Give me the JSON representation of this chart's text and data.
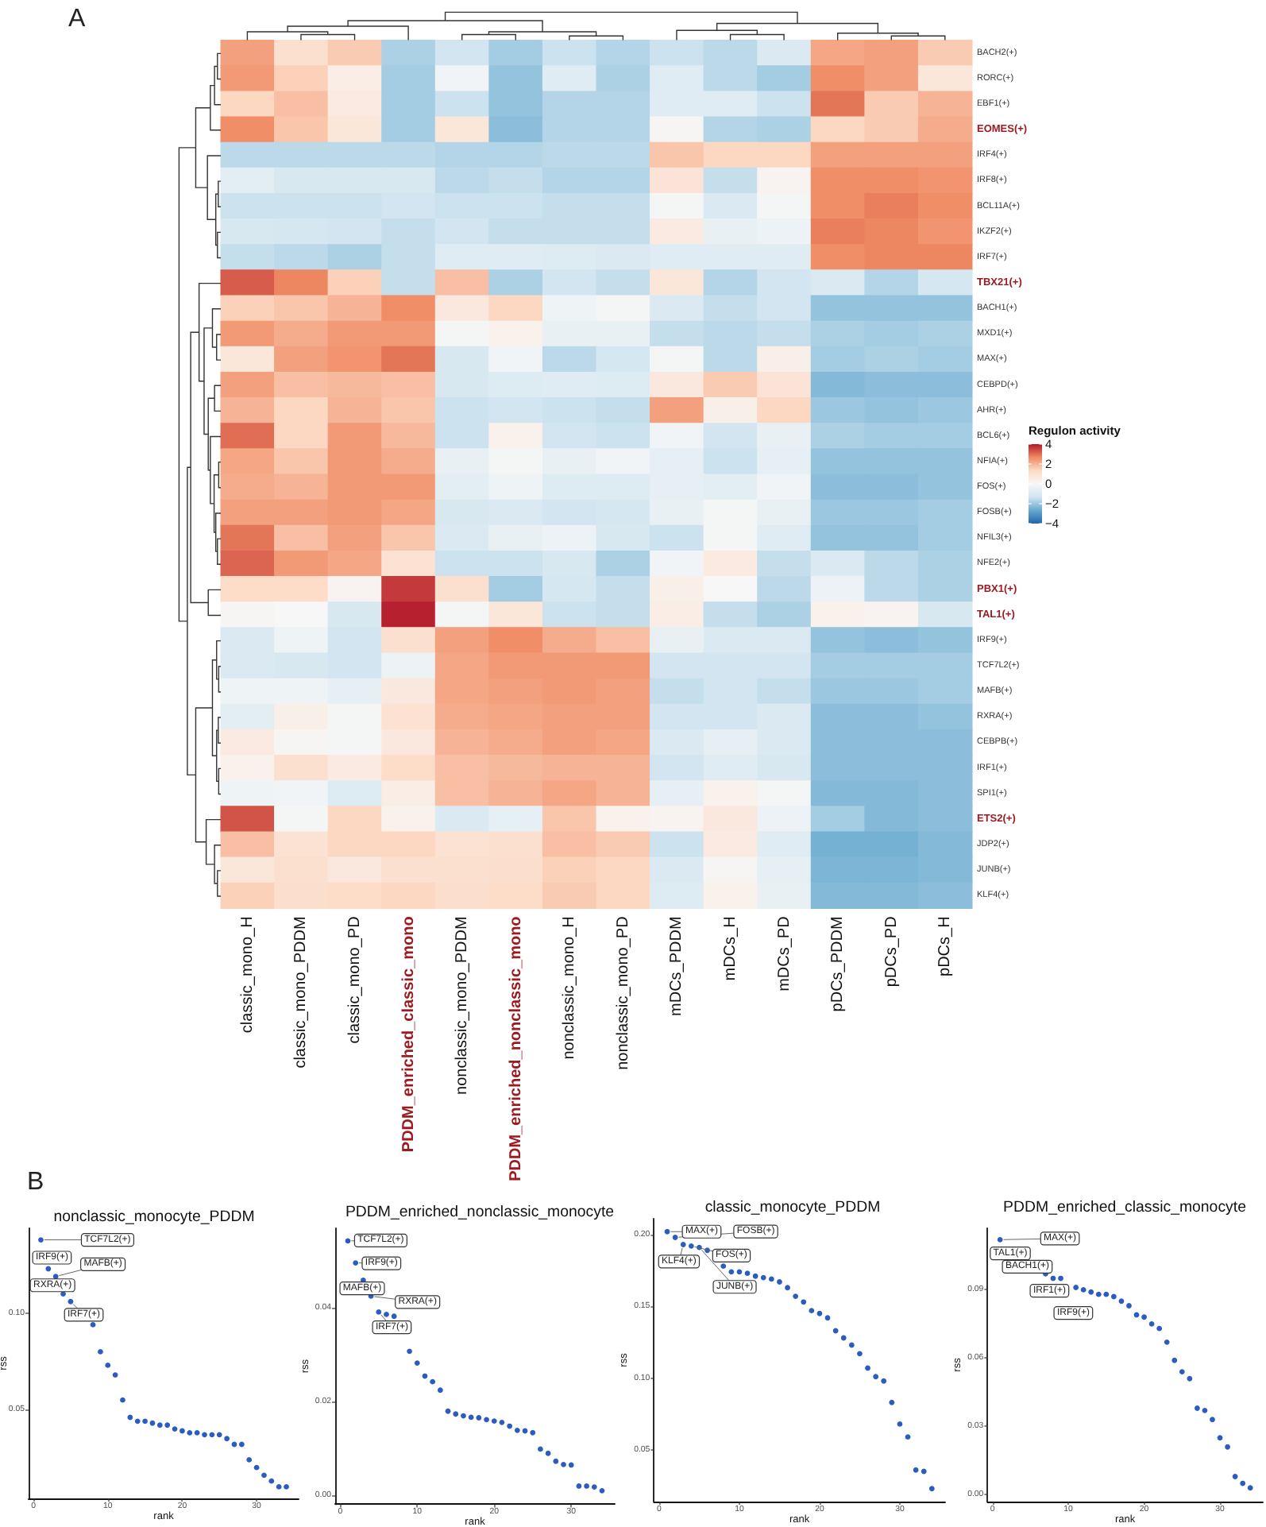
{
  "chart_data": [
    {
      "type": "heatmap",
      "annotations": [
        "A"
      ],
      "categories": [
        "classic_mono_H",
        "classic_mono_PDDM",
        "classic_mono_PD",
        "PDDM_enriched_classic_mono",
        "nonclassic_mono_PDDM",
        "PDDM_enriched_nonclassic_mono",
        "nonclassic_mono_H",
        "nonclassic_mono_PD",
        "mDCs_PDDM",
        "mDCs_H",
        "mDCs_PD",
        "pDCs_PDDM",
        "pDCs_PD",
        "pDCs_H"
      ],
      "y_categories": [
        "BACH2(+)",
        "RORC(+)",
        "EBF1(+)",
        "EOMES(+)",
        "IRF4(+)",
        "IRF8(+)",
        "BCL11A(+)",
        "IKZF2(+)",
        "IRF7(+)",
        "TBX21(+)",
        "BACH1(+)",
        "MXD1(+)",
        "MAX(+)",
        "CEBPD(+)",
        "AHR(+)",
        "BCL6(+)",
        "NFIA(+)",
        "FOS(+)",
        "FOSB(+)",
        "NFIL3(+)",
        "NFE2(+)",
        "PBX1(+)",
        "TAL1(+)",
        "IRF9(+)",
        "TCF7L2(+)",
        "MAFB(+)",
        "RXRA(+)",
        "CEBPB(+)",
        "IRF1(+)",
        "SPI1(+)",
        "ETS2(+)",
        "JDP2(+)",
        "JUNB(+)",
        "KLF4(+)"
      ],
      "cells": [
        [
          2.3,
          1.1,
          1.6,
          -1.8,
          -1.3,
          -1.9,
          -1.4,
          -1.7,
          -1.4,
          -1.6,
          -1.0,
          2.2,
          2.3,
          1.6
        ],
        [
          2.4,
          1.5,
          0.5,
          -1.9,
          -0.2,
          -2.1,
          -0.8,
          -1.8,
          -0.8,
          -1.6,
          -1.9,
          2.6,
          2.3,
          0.8
        ],
        [
          1.4,
          1.8,
          0.6,
          -1.9,
          -1.4,
          -2.1,
          -1.7,
          -1.7,
          -0.8,
          -0.8,
          -1.4,
          2.9,
          1.6,
          2.0
        ],
        [
          2.6,
          1.7,
          0.8,
          -1.9,
          0.8,
          -2.2,
          -1.7,
          -1.7,
          0.1,
          -1.7,
          -1.8,
          1.4,
          1.6,
          2.1
        ],
        [
          -1.6,
          -1.6,
          -1.6,
          -1.6,
          -1.7,
          -1.7,
          -1.6,
          -1.6,
          1.7,
          1.4,
          1.4,
          2.3,
          2.3,
          2.3
        ],
        [
          -0.7,
          -1.1,
          -1.1,
          -1.1,
          -1.6,
          -1.5,
          -1.7,
          -1.7,
          0.9,
          -1.5,
          0.2,
          2.6,
          2.6,
          2.5
        ],
        [
          -1.4,
          -1.4,
          -1.4,
          -1.3,
          -1.4,
          -1.4,
          -1.5,
          -1.5,
          -0.1,
          -1.0,
          -0.1,
          2.6,
          2.8,
          2.6
        ],
        [
          -1.1,
          -1.2,
          -1.3,
          -1.5,
          -1.3,
          -1.5,
          -1.5,
          -1.5,
          0.6,
          -0.5,
          -0.4,
          2.8,
          2.7,
          2.5
        ],
        [
          -1.5,
          -1.6,
          -1.8,
          -1.5,
          -0.8,
          -0.8,
          -0.9,
          -1.0,
          -0.8,
          -0.8,
          -0.8,
          2.6,
          2.7,
          2.7
        ],
        [
          3.2,
          2.7,
          1.5,
          -1.5,
          1.8,
          -1.8,
          -1.3,
          -1.5,
          0.8,
          -1.7,
          -1.3,
          -1.0,
          -1.7,
          -1.2
        ],
        [
          1.5,
          1.7,
          2.0,
          2.6,
          0.7,
          1.4,
          -0.3,
          -0.1,
          -1.0,
          -1.5,
          -1.3,
          -2.1,
          -2.1,
          -2.1
        ],
        [
          2.4,
          2.1,
          2.4,
          2.4,
          -0.1,
          0.3,
          -0.5,
          -0.5,
          -1.5,
          -1.6,
          -1.5,
          -1.8,
          -1.9,
          -1.8
        ],
        [
          0.8,
          2.3,
          2.5,
          2.9,
          -1.1,
          -0.2,
          -1.6,
          -1.2,
          -0.1,
          -1.6,
          0.4,
          -1.9,
          -1.8,
          -1.9
        ],
        [
          2.3,
          1.8,
          1.9,
          1.8,
          -1.1,
          -0.9,
          -0.8,
          -0.9,
          0.7,
          1.6,
          0.9,
          -2.3,
          -2.2,
          -2.2
        ],
        [
          2.0,
          1.4,
          2.0,
          1.7,
          -1.4,
          -1.3,
          -1.4,
          -1.5,
          2.3,
          0.4,
          1.4,
          -2.0,
          -2.1,
          -2.0
        ],
        [
          3.0,
          1.4,
          2.4,
          1.9,
          -1.4,
          0.3,
          -1.3,
          -1.4,
          -0.2,
          -1.3,
          -0.5,
          -1.8,
          -1.9,
          -1.9
        ],
        [
          2.2,
          1.7,
          2.4,
          2.1,
          -0.5,
          -0.1,
          -0.5,
          -0.2,
          -0.6,
          -1.4,
          -0.6,
          -2.1,
          -2.1,
          -2.1
        ],
        [
          2.1,
          2.0,
          2.4,
          2.4,
          -0.7,
          -0.3,
          -0.9,
          -0.9,
          -0.6,
          -0.7,
          -0.2,
          -2.2,
          -2.2,
          -2.1
        ],
        [
          2.3,
          2.3,
          2.4,
          2.2,
          -1.1,
          -1.0,
          -1.3,
          -1.2,
          -0.5,
          -0.1,
          -0.5,
          -2.0,
          -2.0,
          -1.9
        ],
        [
          2.9,
          1.8,
          2.3,
          1.7,
          -1.0,
          -0.5,
          -0.4,
          -1.1,
          -1.4,
          -0.1,
          -0.8,
          -2.1,
          -2.1,
          -1.9
        ],
        [
          3.1,
          2.4,
          2.2,
          1.0,
          -1.4,
          -1.4,
          -1.1,
          -1.8,
          -0.2,
          0.6,
          -1.5,
          -1.0,
          -1.6,
          -1.8
        ],
        [
          1.3,
          1.3,
          0.2,
          3.6,
          1.1,
          -1.9,
          -1.2,
          -1.5,
          0.4,
          0.0,
          -1.6,
          -0.4,
          -1.6,
          -1.8
        ],
        [
          0.1,
          0.0,
          -1.1,
          3.9,
          -0.1,
          0.8,
          -1.4,
          -1.5,
          0.5,
          -1.5,
          -1.8,
          0.3,
          0.2,
          -1.1
        ],
        [
          -1.0,
          -0.3,
          -1.3,
          1.1,
          2.3,
          2.6,
          2.1,
          1.8,
          -0.5,
          -1.0,
          -1.0,
          -2.1,
          -2.2,
          -2.1
        ],
        [
          -1.0,
          -1.1,
          -1.3,
          -0.4,
          2.2,
          2.4,
          2.4,
          2.4,
          -1.3,
          -1.3,
          -1.3,
          -1.9,
          -1.9,
          -1.9
        ],
        [
          -0.3,
          -0.3,
          -0.6,
          0.7,
          2.2,
          2.3,
          2.4,
          2.3,
          -1.5,
          -1.3,
          -1.5,
          -2.0,
          -2.0,
          -1.9
        ],
        [
          -0.7,
          0.4,
          -0.1,
          1.0,
          2.1,
          2.2,
          2.3,
          2.3,
          -1.3,
          -1.3,
          -1.0,
          -2.2,
          -2.2,
          -2.1
        ],
        [
          0.6,
          0.1,
          -0.1,
          0.7,
          2.0,
          2.1,
          2.3,
          2.2,
          -1.0,
          -0.6,
          -1.0,
          -2.2,
          -2.2,
          -2.2
        ],
        [
          0.3,
          1.1,
          0.6,
          1.3,
          1.8,
          1.9,
          2.0,
          2.0,
          -1.3,
          -0.8,
          -1.1,
          -2.2,
          -2.2,
          -2.2
        ],
        [
          -0.3,
          -0.2,
          -0.9,
          0.5,
          1.8,
          2.0,
          2.2,
          2.0,
          -0.6,
          0.3,
          -0.1,
          -2.3,
          -2.3,
          -2.2
        ],
        [
          3.3,
          -0.1,
          1.4,
          0.3,
          -1.0,
          -0.6,
          1.7,
          0.3,
          0.2,
          0.7,
          -0.4,
          -1.9,
          -2.3,
          -2.2
        ],
        [
          1.8,
          1.0,
          1.4,
          1.4,
          1.0,
          1.1,
          1.8,
          1.6,
          -1.4,
          0.6,
          -0.8,
          -2.5,
          -2.5,
          -2.3
        ],
        [
          0.8,
          1.1,
          0.7,
          1.1,
          1.1,
          1.2,
          1.5,
          1.4,
          -1.0,
          0.1,
          -0.6,
          -2.4,
          -2.4,
          -2.3
        ],
        [
          1.5,
          1.2,
          1.3,
          1.4,
          1.2,
          1.3,
          1.6,
          1.4,
          -0.9,
          0.3,
          -0.5,
          -2.3,
          -2.3,
          -2.2
        ]
      ],
      "clabel": "Regulon activity",
      "clim": [
        -4,
        4
      ],
      "cticks": [
        {
          "value": -4,
          "label": "−4"
        },
        {
          "value": -2,
          "label": "−2"
        },
        0,
        2,
        4
      ]
    },
    {
      "type": "scatter",
      "title": "nonclassic_monocyte_PDDM",
      "xlabel": "rank",
      "ylabel": "rss",
      "marker": "circle",
      "color": "#2b5cc0",
      "x": [
        1,
        2,
        3,
        4,
        5,
        6,
        7,
        8,
        9,
        10,
        11,
        12,
        13,
        14,
        15,
        16,
        17,
        18,
        19,
        20,
        21,
        22,
        23,
        24,
        25,
        26,
        27,
        28,
        29,
        30,
        31,
        32,
        33,
        34
      ],
      "values": [
        0.138,
        0.123,
        0.119,
        0.11,
        0.106,
        null,
        null,
        0.094,
        0.08,
        0.073,
        0.068,
        0.055,
        0.046,
        0.044,
        0.044,
        0.043,
        0.042,
        0.042,
        0.04,
        0.039,
        0.038,
        0.038,
        0.037,
        0.037,
        0.037,
        0.035,
        0.032,
        0.032,
        0.024,
        0.02,
        0.016,
        0.013,
        0.01,
        0.01
      ],
      "xlim": [
        -0.65,
        35.65
      ],
      "xticks": [
        0,
        10,
        20,
        30
      ],
      "ylim": [
        0.004,
        0.144
      ],
      "yticks": [
        {
          "value": 0.05,
          "label": "0.05"
        },
        {
          "value": 0.1,
          "label": "0.10"
        }
      ],
      "annotations": [
        "B",
        {
          "text": "TCF7L2(+)",
          "x": 1,
          "y": 0.138
        },
        {
          "text": "IRF9(+)",
          "x": 2,
          "y": 0.123
        },
        {
          "text": "MAFB(+)",
          "x": 3,
          "y": 0.119
        },
        {
          "text": "RXRA(+)",
          "x": 4,
          "y": 0.11
        },
        {
          "text": "IRF7(+)",
          "x": 5,
          "y": 0.106
        }
      ]
    },
    {
      "type": "scatter",
      "title": "PDDM_enriched_nonclassic_monocyte",
      "xlabel": "rank",
      "ylabel": "rss",
      "marker": "circle",
      "color": "#2b5cc0",
      "x": [
        1,
        2,
        3,
        4,
        5,
        6,
        7,
        8,
        9,
        10,
        11,
        12,
        13,
        14,
        15,
        16,
        17,
        18,
        19,
        20,
        21,
        22,
        23,
        24,
        25,
        26,
        27,
        28,
        29,
        30,
        31,
        32,
        33,
        34
      ],
      "values": [
        0.0543,
        0.0496,
        0.0459,
        0.0425,
        0.0391,
        0.0386,
        0.0382,
        null,
        0.0307,
        0.0282,
        0.0254,
        0.0242,
        0.0224,
        0.0179,
        0.0173,
        0.0169,
        0.0166,
        0.0165,
        0.0161,
        0.0158,
        0.0155,
        0.0147,
        0.0138,
        0.0137,
        0.0133,
        0.0098,
        0.0089,
        0.0072,
        0.0065,
        0.0064,
        0.0019,
        0.0019,
        0.0017,
        0.0009
      ],
      "xlim": [
        -0.65,
        35.65
      ],
      "xticks": [
        0,
        10,
        20,
        30
      ],
      "ylim": [
        -0.002,
        0.057
      ],
      "yticks": [
        {
          "value": 0,
          "label": "0.00"
        },
        {
          "value": 0.02,
          "label": "0.02"
        },
        {
          "value": 0.04,
          "label": "0.04"
        }
      ],
      "annotations": [
        {
          "text": "TCF7L2(+)",
          "x": 1,
          "y": 0.0543
        },
        {
          "text": "IRF9(+)",
          "x": 2,
          "y": 0.0496
        },
        {
          "text": "MAFB(+)",
          "x": 3,
          "y": 0.0459
        },
        {
          "text": "RXRA(+)",
          "x": 4,
          "y": 0.0425
        },
        {
          "text": "IRF7(+)",
          "x": 5,
          "y": 0.0391
        }
      ]
    },
    {
      "type": "scatter",
      "title": "classic_monocyte_PDDM",
      "xlabel": "rank",
      "ylabel": "rss",
      "marker": "circle",
      "color": "#2b5cc0",
      "x": [
        1,
        2,
        3,
        4,
        5,
        6,
        7,
        8,
        9,
        10,
        11,
        12,
        13,
        14,
        15,
        16,
        17,
        18,
        19,
        20,
        21,
        22,
        23,
        24,
        25,
        26,
        27,
        28,
        29,
        30,
        31,
        32,
        33,
        34
      ],
      "values": [
        0.202,
        0.198,
        0.193,
        0.192,
        0.191,
        0.189,
        null,
        0.178,
        0.174,
        0.174,
        0.173,
        0.171,
        0.17,
        0.169,
        0.167,
        0.163,
        0.157,
        0.153,
        0.147,
        0.145,
        0.142,
        0.133,
        0.128,
        0.123,
        0.117,
        0.107,
        0.101,
        0.098,
        0.083,
        0.068,
        0.059,
        0.036,
        0.035,
        0.023
      ],
      "xlim": [
        -0.65,
        35.65
      ],
      "xticks": [
        0,
        10,
        20,
        30
      ],
      "ylim": [
        0.014,
        0.211
      ],
      "yticks": [
        {
          "value": 0.05,
          "label": "0.05"
        },
        {
          "value": 0.1,
          "label": "0.10"
        },
        {
          "value": 0.15,
          "label": "0.15"
        },
        {
          "value": 0.2,
          "label": "0.20"
        }
      ],
      "annotations": [
        {
          "text": "MAX(+)",
          "x": 1,
          "y": 0.202
        },
        {
          "text": "FOSB(+)",
          "x": 2,
          "y": 0.198
        },
        {
          "text": "KLF4(+)",
          "x": 3,
          "y": 0.193
        },
        {
          "text": "FOS(+)",
          "x": 4,
          "y": 0.192
        },
        {
          "text": "JUNB(+)",
          "x": 5,
          "y": 0.191
        }
      ]
    },
    {
      "type": "scatter",
      "title": "PDDM_enriched_classic_monocyte",
      "xlabel": "rank",
      "ylabel": "rss",
      "marker": "circle",
      "color": "#2b5cc0",
      "x": [
        1,
        2,
        3,
        4,
        5,
        6,
        7,
        8,
        9,
        10,
        11,
        12,
        13,
        14,
        15,
        16,
        17,
        18,
        19,
        20,
        21,
        22,
        23,
        24,
        25,
        26,
        27,
        28,
        29,
        30,
        31,
        32,
        33,
        34
      ],
      "values": [
        0.112,
        null,
        null,
        null,
        null,
        null,
        0.097,
        0.095,
        0.095,
        null,
        0.091,
        0.09,
        0.089,
        0.088,
        0.088,
        0.087,
        0.085,
        0.083,
        0.079,
        0.078,
        0.075,
        0.073,
        0.067,
        0.059,
        0.054,
        0.051,
        0.038,
        0.037,
        0.033,
        0.025,
        0.021,
        0.008,
        0.005,
        0.003
      ],
      "xlim": [
        -0.65,
        35.65
      ],
      "xticks": [
        0,
        10,
        20,
        30
      ],
      "ylim": [
        -0.003,
        0.117
      ],
      "yticks": [
        {
          "value": 0,
          "label": "0.00"
        },
        {
          "value": 0.03,
          "label": "0.03"
        },
        {
          "value": 0.06,
          "label": "0.06"
        },
        {
          "value": 0.09,
          "label": "0.09"
        }
      ],
      "annotations": [
        {
          "text": "MAX(+)",
          "x": 1,
          "y": 0.112
        },
        "TAL1(+)",
        "BACH1(+)",
        "IRF1(+)",
        "IRF9(+)"
      ]
    }
  ]
}
